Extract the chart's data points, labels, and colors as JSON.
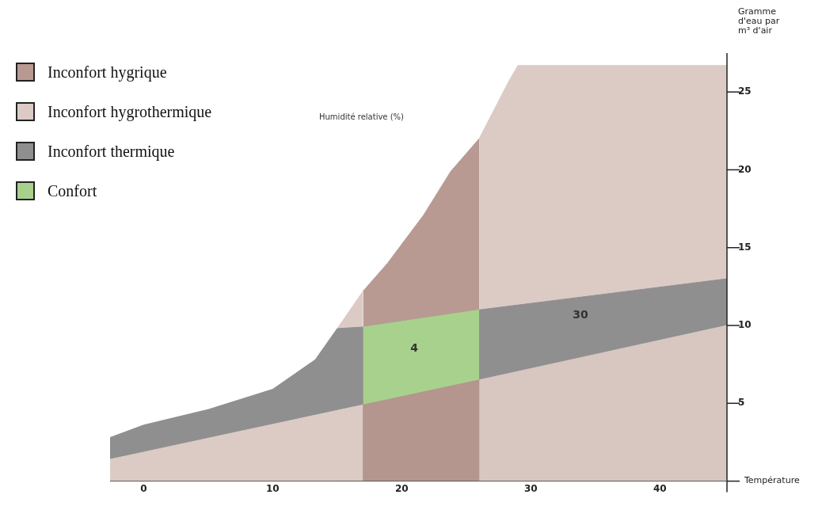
{
  "chart_data": {
    "type": "area",
    "ylabel": "Gramme d'eau par m³ d'air",
    "xlabel": "Température",
    "annotations": [
      "Humidité relative (%)",
      "4",
      "30"
    ],
    "xlim": [
      -2.6,
      45.2
    ],
    "xticks": [
      0,
      10,
      20,
      30,
      40
    ],
    "ylim": [
      0,
      27.5
    ],
    "yticks": [
      {
        "value": 0,
        "label": null
      },
      5,
      10,
      15,
      20,
      25
    ],
    "grid": false,
    "legend": "top left",
    "series": [
      {
        "name": "Inconfort hygrique",
        "color": "#b89a92",
        "x": [
          17,
          18.9,
          21.7,
          23.8,
          26
        ],
        "values": [
          12.2,
          14.0,
          17.1,
          19.9,
          22.0
        ]
      },
      {
        "name": "Inconfort hygrothermique",
        "color": "#dccbc5",
        "x": [
          26,
          28.3,
          29,
          45.2
        ],
        "values": [
          22.0,
          25.7,
          26.7,
          26.7
        ]
      },
      {
        "color": "#dccbc5",
        "x": [
          15,
          16,
          17
        ],
        "values": [
          9.8,
          11.0,
          12.2
        ]
      },
      {
        "name": "Inconfort thermique",
        "color": "#8f8f8f",
        "x": [
          -2.6,
          0,
          5,
          10,
          13.3,
          15,
          17,
          26,
          45.2
        ],
        "values": [
          2.8,
          3.6,
          4.6,
          5.9,
          7.8,
          9.8,
          9.9,
          11.0,
          13.0
        ]
      },
      {
        "name": "Confort",
        "color": "#a9d18e",
        "x": [
          17,
          26
        ],
        "values": [
          9.9,
          11.0
        ]
      },
      {
        "color": "#dccbc5",
        "x": [
          -2.6,
          17
        ],
        "values": [
          1.4,
          4.9
        ]
      },
      {
        "color": "#b4968e",
        "x": [
          17,
          26
        ],
        "values": [
          4.9,
          6.5
        ]
      },
      {
        "color": "#d8c7c1",
        "x": [
          26,
          45.2
        ],
        "values": [
          6.5,
          10.0
        ]
      }
    ]
  }
}
